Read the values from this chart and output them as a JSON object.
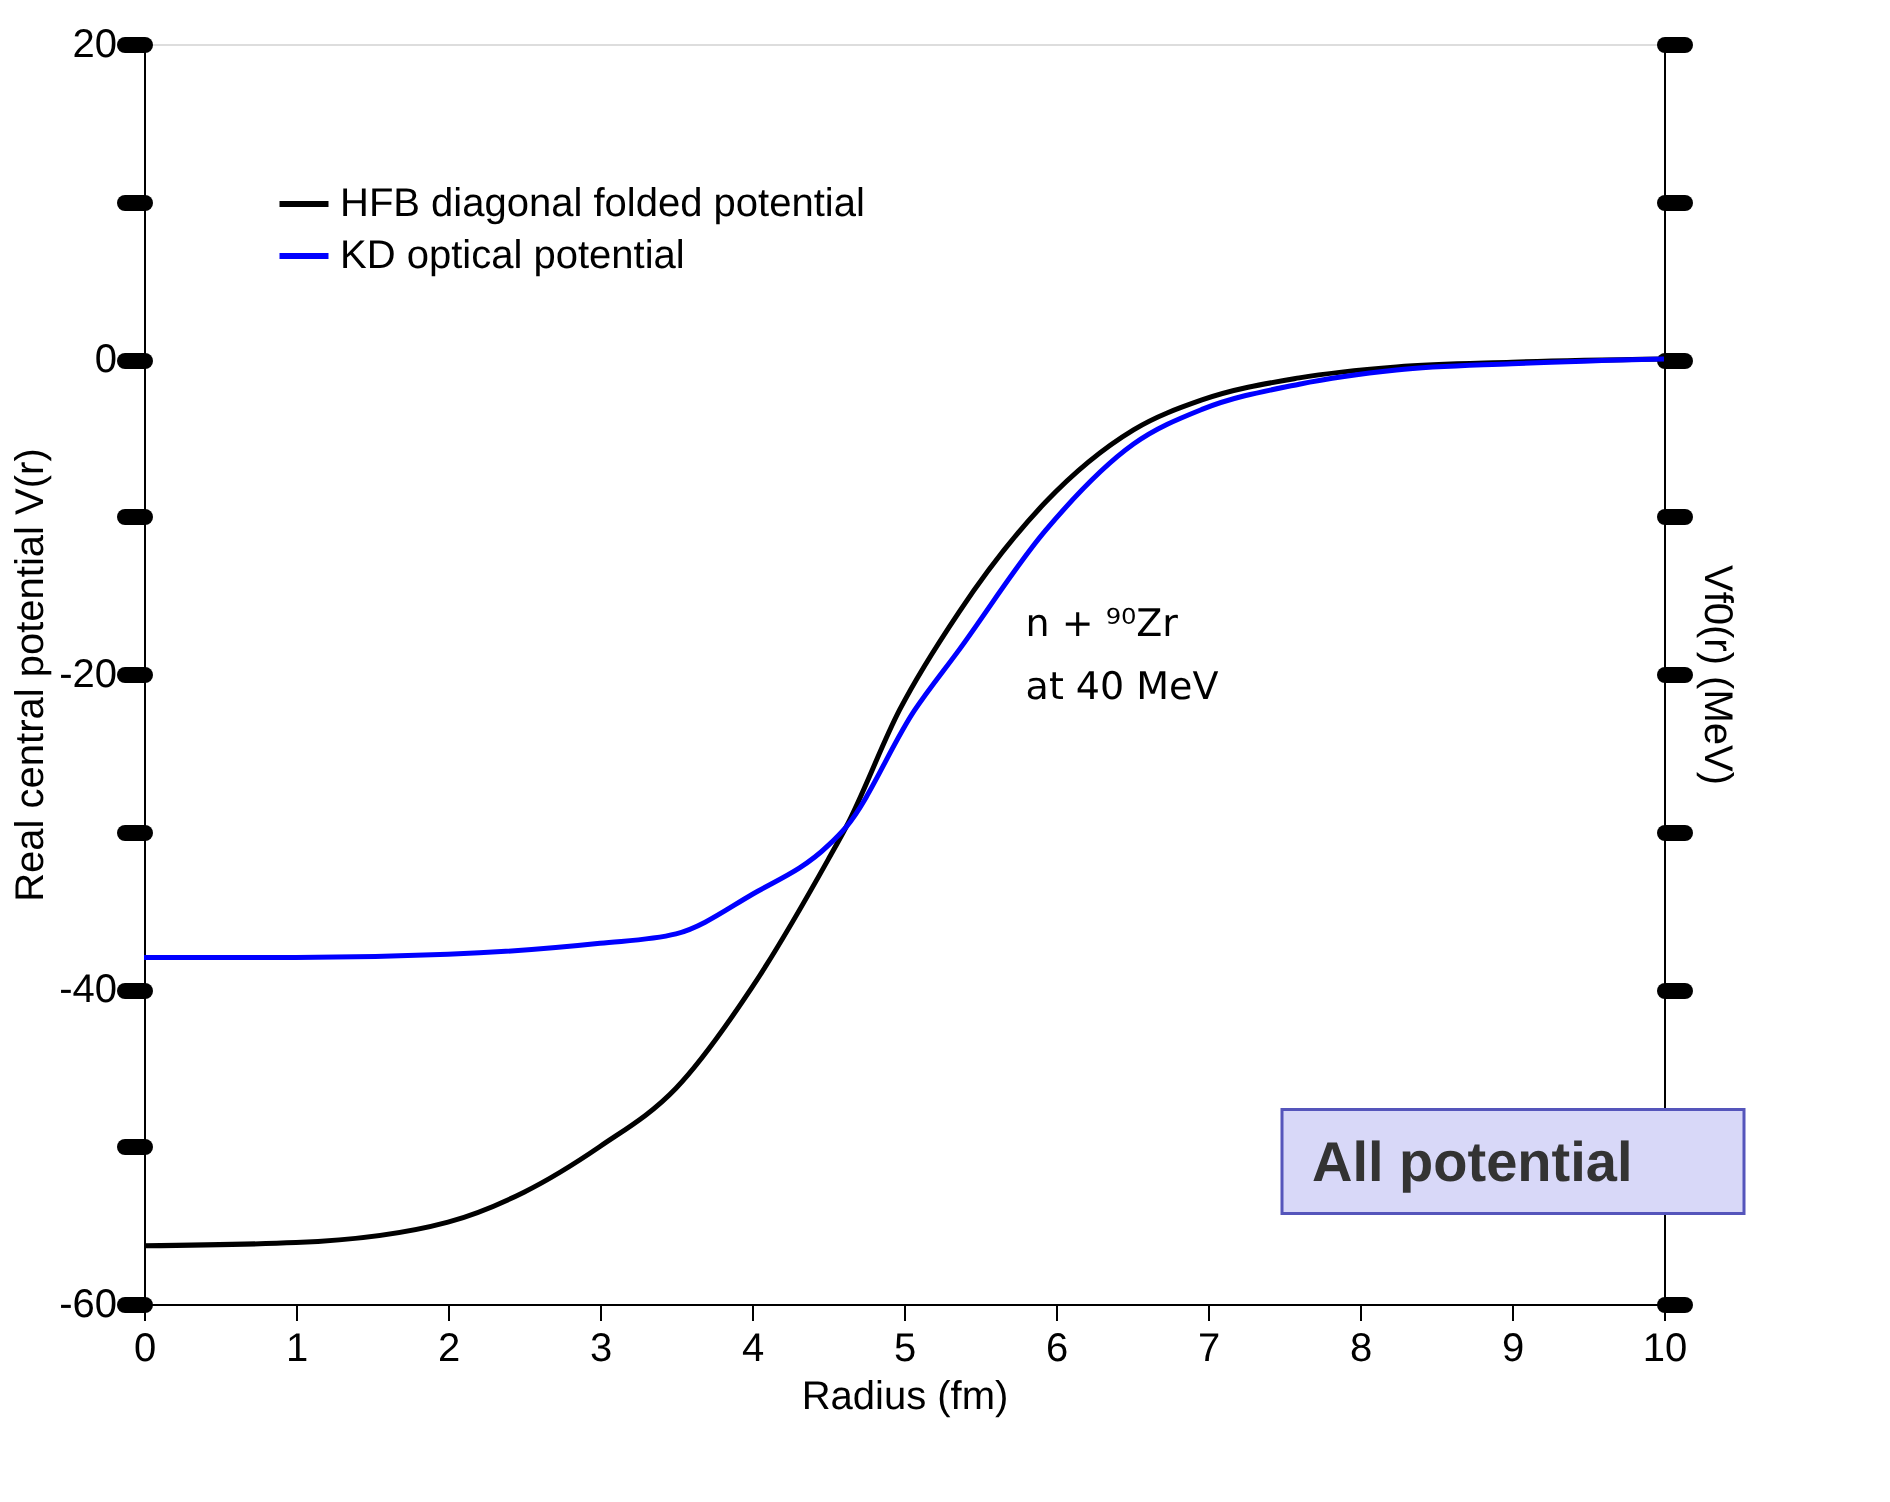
{
  "chart_data": {
    "type": "line",
    "xlabel": "Radius (fm)",
    "ylabel": "Real central potential V(r)",
    "y2label": "Vf0(r) (MeV)",
    "xlim": [
      0,
      10
    ],
    "xticks": [
      0,
      1,
      2,
      3,
      4,
      5,
      6,
      7,
      8,
      9,
      10
    ],
    "ylim": [
      -60,
      20
    ],
    "yticks": [
      -60,
      {
        "value": -50,
        "label": null
      },
      -40,
      {
        "value": -30,
        "label": null
      },
      -20,
      {
        "value": -10,
        "label": null
      },
      0,
      {
        "value": 10,
        "label": null
      },
      20
    ],
    "grid": false,
    "legend": "top left",
    "line_style": "solid",
    "marker": "none",
    "series": [
      {
        "name": "HFB diagonal folded potential",
        "color": "#000000",
        "x": [
          0,
          1,
          2,
          2.5,
          3,
          3.5,
          4,
          4.5,
          4.62,
          4.97,
          5.36,
          5.93,
          6.51,
          6.96,
          7.6,
          8.24,
          9,
          10
        ],
        "values": [
          -56.3,
          -56.1,
          -54.8,
          -52.9,
          -50.0,
          -46.3,
          -39.9,
          -31.8,
          -29.7,
          -22.3,
          -16.1,
          -9.1,
          -4.5,
          -2.6,
          -1.2,
          -0.5,
          -0.2,
          0
        ]
      },
      {
        "name": "KD optical potential",
        "color": "#0000ff",
        "x": [
          0,
          1,
          2,
          3,
          3.5,
          4,
          4.5,
          4.62,
          5.07,
          5.36,
          5.93,
          6.51,
          6.96,
          7.6,
          8.24,
          9,
          10
        ],
        "values": [
          -38.0,
          -38.0,
          -37.8,
          -37.1,
          -36.5,
          -34.0,
          -30.9,
          -29.7,
          -22.3,
          -18.5,
          -10.9,
          -5.4,
          -3.2,
          -1.6,
          -0.7,
          -0.3,
          0
        ]
      }
    ],
    "annotations": [
      "n + ⁹⁰Zr",
      "at 40 MeV",
      "All potential"
    ]
  }
}
